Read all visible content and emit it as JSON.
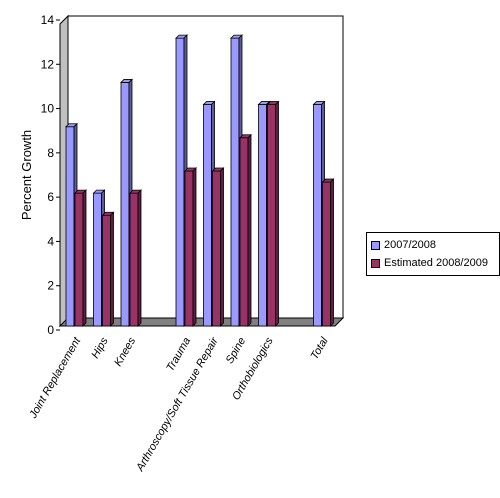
{
  "chart_data": {
    "type": "bar",
    "title": "",
    "xlabel": "",
    "ylabel": "Percent Growth",
    "ylim": [
      0,
      14
    ],
    "yticks": [
      0,
      2,
      4,
      6,
      8,
      10,
      12,
      14
    ],
    "grid": true,
    "legend_position": "right",
    "categories": [
      "Joint Replacement",
      "Hips",
      "Knees",
      "",
      "Trauma",
      "Arthroscopy/Soft Tissue Repair",
      "Spine",
      "Orthobiologics",
      "",
      "Total"
    ],
    "series": [
      {
        "name": "2007/2008",
        "color": "#9999ff",
        "values": [
          9,
          6,
          11,
          null,
          13,
          10,
          13,
          10,
          null,
          10
        ]
      },
      {
        "name": "Estimated 2008/2009",
        "color": "#993366",
        "values": [
          6,
          5,
          6,
          null,
          7,
          7,
          8.5,
          10,
          null,
          6.5
        ]
      }
    ]
  }
}
